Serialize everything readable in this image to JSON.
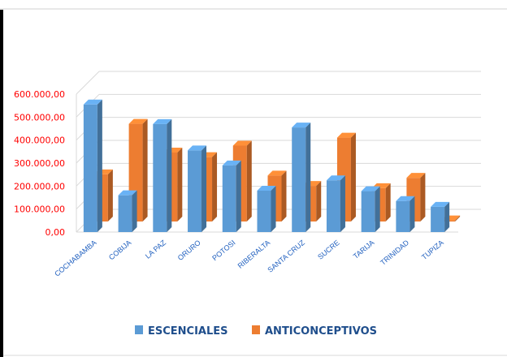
{
  "chart_data": {
    "type": "bar",
    "categories": [
      "COCHABAMBA",
      "COBIJA",
      "LA PAZ",
      "ORURO",
      "POTOSI",
      "RIBERALTA",
      "SANTA CRUZ",
      "SUCRE",
      "TARIJA",
      "TRINIDAD",
      "TUPIZA"
    ],
    "series": [
      {
        "name": "ESCENCIALES",
        "values": [
          555000,
          160000,
          470000,
          355000,
          290000,
          180000,
          455000,
          225000,
          178000,
          135000,
          110000
        ],
        "color": "#5b9bd5"
      },
      {
        "name": "ANTICONCEPTIVOS",
        "values": [
          205000,
          425000,
          300000,
          280000,
          330000,
          200000,
          155000,
          365000,
          145000,
          190000,
          5000
        ],
        "color": "#ed7d31"
      }
    ],
    "yticks": [
      "0,00",
      "100.000,00",
      "200.000,00",
      "300.000,00",
      "400.000,00",
      "500.000,00",
      "600.000,00"
    ],
    "ylim": [
      0,
      600000
    ],
    "grid": true,
    "legend_position": "bottom",
    "three_d": true
  }
}
